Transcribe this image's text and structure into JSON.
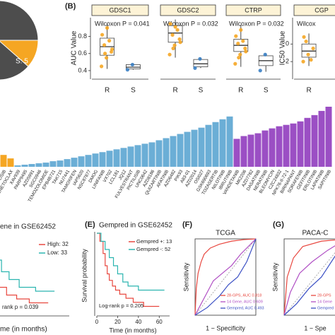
{
  "pie": {
    "label": "S: 5"
  },
  "panel_b": {
    "tag": "(B)",
    "y_label": "AUC Value",
    "y2_label": "IC50 Value",
    "groups": [
      "R",
      "S"
    ],
    "facets": [
      {
        "name": "GDSC1",
        "annotation": "Wilcoxon P = 0.041",
        "ylim": [
          0.3,
          1.02
        ],
        "yticks": [
          0.4,
          0.6,
          0.8
        ],
        "boxes": [
          {
            "low": 0.42,
            "q1": 0.58,
            "median": 0.68,
            "q3": 0.78,
            "high": 0.95,
            "points": [
              0.45,
              0.55,
              0.62,
              0.7,
              0.75,
              0.82,
              0.9,
              0.65,
              0.6
            ]
          },
          {
            "low": 0.41,
            "q1": 0.42,
            "median": 0.44,
            "q3": 0.47,
            "high": 0.48,
            "points": [
              0.41,
              0.47
            ]
          }
        ]
      },
      {
        "name": "GDSC2",
        "annotation": "Wilcoxon P = 0.032",
        "ylim": [
          0,
          1
        ],
        "boxes": [
          {
            "low": 0.35,
            "q1": 0.6,
            "median": 0.75,
            "q3": 0.87,
            "high": 0.97,
            "points": [
              0.4,
              0.55,
              0.65,
              0.72,
              0.8,
              0.9,
              0.85,
              0.6,
              0.5
            ]
          },
          {
            "low": 0.18,
            "q1": 0.2,
            "median": 0.25,
            "q3": 0.32,
            "high": 0.35,
            "points": [
              0.18,
              0.33
            ]
          }
        ]
      },
      {
        "name": "CTRP",
        "annotation": "Wilcoxon P = 0.032",
        "ylim": [
          0,
          1
        ],
        "boxes": [
          {
            "low": 0.2,
            "q1": 0.45,
            "median": 0.55,
            "q3": 0.65,
            "high": 0.88,
            "points": [
              0.25,
              0.4,
              0.5,
              0.58,
              0.62,
              0.7,
              0.8,
              0.45,
              0.35
            ]
          },
          {
            "low": 0.12,
            "q1": 0.22,
            "median": 0.3,
            "q3": 0.38,
            "high": 0.42,
            "points": [
              0.14,
              0.4
            ]
          }
        ]
      },
      {
        "name": "CGP",
        "annotation": "Wilcox",
        "ylim": [
          -4,
          3
        ],
        "yticks": [
          -2,
          0
        ],
        "boxes": [
          {
            "low": -2.5,
            "q1": -1.5,
            "median": -0.8,
            "q3": 0,
            "high": 1.2,
            "points": [
              -2,
              -1.2,
              -0.5,
              0.3,
              -1.8,
              0.8
            ]
          }
        ]
      }
    ]
  },
  "bars": {
    "series": [
      {
        "color": "#f5a623",
        "categories": [
          "LISIB",
          "ENETOCLAX"
        ],
        "values": [
          17,
          12
        ]
      },
      {
        "color": "#6baed6",
        "categories": [
          "XAV939",
          "PARP9495",
          "AZD5991",
          "SGC0946",
          "TEMOZOLOMIDE",
          "EPB4B721",
          "TAK715",
          "NU7441",
          "TAMOXIFEN",
          "IAP5620",
          "NSC87877",
          "DMOG",
          "LINIFANIB",
          "VX702",
          "LCL161",
          "JQ12",
          "FULVESTRANT",
          "PICTILISIB",
          "UNC0642",
          "AZD8186",
          "QUIZARTINIB",
          "AFATINIB",
          "AZD6482",
          "PIK93",
          "A83-01",
          "AZD2014",
          "OSI027",
          "GSK690693",
          "TOZASERTIB",
          "NILOTINIB",
          "IBRUTINIB"
        ],
        "values": [
          2,
          3,
          4,
          5,
          6,
          8,
          9,
          11,
          13,
          15,
          17,
          19,
          21,
          23,
          25,
          27,
          29,
          31,
          33,
          35,
          38,
          41,
          44,
          47,
          50,
          53,
          56,
          60,
          64,
          68,
          72
        ]
      },
      {
        "color": "#9b4fc4",
        "categories": [
          "VANDETANIB",
          "MK2206",
          "AZD7762",
          "DASATINIB",
          "NERATINIB",
          "BLEOMYCIN",
          "CZC24832",
          "NPK76-II-72-1",
          "BIRINAPANT",
          "SORAFENIB",
          "GEFITINIB",
          "ERLOTINIB",
          "LAPATINIB",
          "SAPITINIB"
        ],
        "values": [
          40,
          44,
          46,
          48,
          52,
          55,
          58,
          60,
          62,
          65,
          70,
          74,
          80,
          86
        ]
      }
    ]
  },
  "panel_d": {
    "title": "ene in GSE62452",
    "annotation": "rank p = 0.039",
    "x_label": "me (in months)",
    "xlim": [
      0,
      70
    ],
    "series": [
      {
        "name": "High: 32",
        "color": "#e8473f",
        "x": [
          0,
          4,
          8,
          12,
          16,
          22,
          30,
          40,
          55
        ],
        "values": [
          1,
          0.8,
          0.6,
          0.45,
          0.35,
          0.25,
          0.2,
          0.15,
          0.15
        ]
      },
      {
        "name": "Low: 33",
        "color": "#2bb5b0",
        "x": [
          0,
          6,
          12,
          18,
          24,
          32,
          45,
          60
        ],
        "values": [
          1,
          0.85,
          0.7,
          0.55,
          0.45,
          0.35,
          0.3,
          0.3
        ]
      }
    ]
  },
  "panel_e": {
    "tag": "(E)",
    "title": "Gempred in GSE62452",
    "y_label": "Survival probability",
    "x_label": "Time (in months)",
    "annotation": "Log-rank p = 0.205",
    "xlim": [
      0,
      70
    ],
    "xticks": [
      0,
      20,
      40,
      60
    ],
    "series": [
      {
        "name": "Gempred +: 13",
        "color": "#e8473f",
        "x": [
          0,
          3,
          6,
          8,
          10,
          12,
          15,
          18,
          22,
          28,
          35,
          45,
          60
        ],
        "values": [
          1,
          0.9,
          0.75,
          0.6,
          0.5,
          0.42,
          0.35,
          0.3,
          0.25,
          0.2,
          0.15,
          0.1,
          0.1
        ]
      },
      {
        "name": "Gempred -: 52",
        "color": "#2bb5b0",
        "x": [
          0,
          4,
          8,
          12,
          16,
          20,
          25,
          30,
          40,
          55,
          65
        ],
        "values": [
          1,
          0.9,
          0.8,
          0.7,
          0.6,
          0.5,
          0.4,
          0.35,
          0.3,
          0.3,
          0.3
        ]
      }
    ]
  },
  "panel_f": {
    "tag": "(F)",
    "title": "TCGA",
    "y_label": "Sensitivity",
    "x_label": "1 − Specificity",
    "series": [
      {
        "name": "28-GPS, AUC 0.818",
        "color": "#e8473f",
        "x": [
          0,
          0.02,
          0.05,
          0.1,
          0.15,
          0.25,
          0.4,
          0.6,
          0.8,
          1
        ],
        "values": [
          0,
          0.35,
          0.55,
          0.7,
          0.8,
          0.88,
          0.93,
          0.97,
          0.99,
          1
        ]
      },
      {
        "name": "14 Gene, AUC 0.609",
        "color": "#b04fc4",
        "x": [
          0,
          0.1,
          0.2,
          0.3,
          0.45,
          0.6,
          0.75,
          0.9,
          1
        ],
        "values": [
          0,
          0.15,
          0.3,
          0.45,
          0.55,
          0.65,
          0.8,
          0.92,
          1
        ]
      },
      {
        "name": "Gempred, AUC 0.493",
        "color": "#3a4fc4",
        "x": [
          0,
          0.2,
          0.4,
          0.55,
          0.7,
          0.85,
          0.95,
          1
        ],
        "values": [
          0,
          0.1,
          0.25,
          0.4,
          0.5,
          0.7,
          0.9,
          1
        ]
      }
    ]
  },
  "panel_g": {
    "tag": "(G)",
    "title": "PACA-C",
    "y_label": "Sensitivity",
    "x_label": "1 − Spe",
    "series": [
      {
        "name": "28-GPS",
        "color": "#e8473f",
        "x": [
          0,
          0.05,
          0.15,
          0.3,
          0.6,
          1
        ],
        "values": [
          0,
          0.5,
          0.75,
          0.9,
          0.97,
          1
        ]
      },
      {
        "name": "14 Gene",
        "color": "#b04fc4",
        "x": [
          0,
          0.1,
          0.25,
          0.45,
          0.7,
          1
        ],
        "values": [
          0,
          0.3,
          0.55,
          0.7,
          0.85,
          1
        ]
      },
      {
        "name": "Gempred",
        "color": "#3a4fc4",
        "x": [
          0,
          0.2,
          0.4,
          0.6,
          0.8,
          1
        ],
        "values": [
          0,
          0.15,
          0.35,
          0.5,
          0.75,
          1
        ]
      }
    ]
  }
}
